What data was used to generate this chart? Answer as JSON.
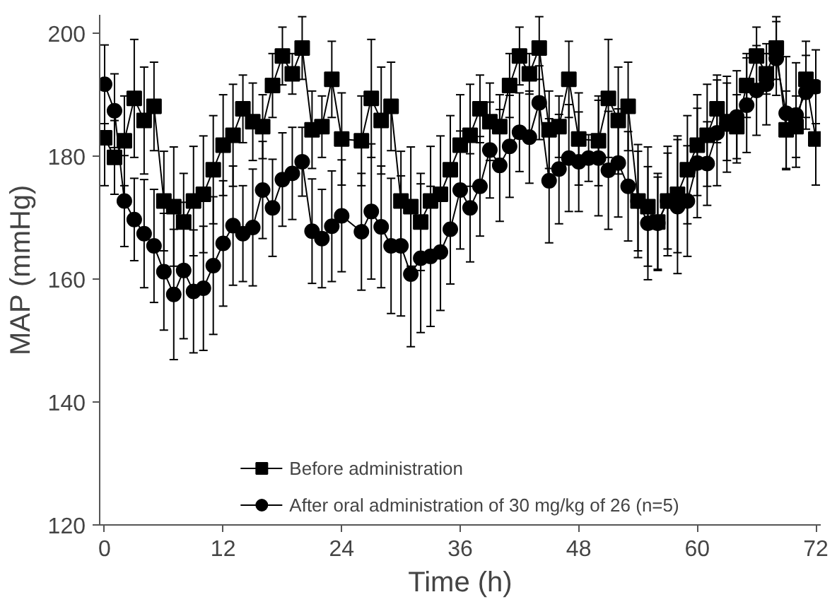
{
  "chart_data": {
    "type": "line",
    "xlabel": "Time (h)",
    "ylabel": "MAP (mmHg)",
    "xlim": [
      -0.5,
      72.5
    ],
    "xticks": [
      0,
      12,
      24,
      36,
      48,
      60,
      72
    ],
    "ylim": [
      120,
      203
    ],
    "yticks": [
      120,
      140,
      160,
      180,
      200
    ],
    "grid": false,
    "legend": "bottom",
    "line_style": "solid",
    "series": [
      {
        "name": "Before administration",
        "color": "#000000",
        "marker": "square",
        "x": [
          0,
          1,
          2,
          3,
          4,
          5,
          6,
          7,
          8,
          9,
          10,
          11,
          12,
          13,
          14,
          15,
          16,
          17,
          18,
          19,
          20,
          21,
          22,
          23,
          24,
          26,
          27,
          28,
          29,
          30,
          31,
          32,
          33,
          34,
          35,
          36,
          37,
          38,
          39,
          40,
          41,
          42,
          43,
          44,
          45,
          46,
          47,
          48,
          50,
          51,
          52,
          53,
          54,
          55,
          56,
          57,
          58,
          59,
          60,
          61,
          62,
          63,
          64,
          65,
          66,
          67,
          68,
          69,
          70,
          71,
          72
        ],
        "values": [
          183.0,
          179.8,
          182.5,
          189.4,
          185.8,
          188.1,
          172.7,
          171.8,
          169.3,
          172.7,
          173.8,
          177.8,
          181.8,
          183.4,
          187.7,
          185.6,
          184.8,
          191.5,
          196.3,
          193.4,
          197.6,
          184.3,
          184.8,
          192.5,
          182.8,
          182.5,
          189.4,
          185.8,
          188.1,
          172.7,
          171.8,
          169.3,
          172.7,
          173.8,
          177.8,
          181.8,
          183.4,
          187.7,
          185.6,
          184.8,
          191.5,
          196.3,
          193.4,
          197.6,
          184.3,
          184.8,
          192.5,
          182.8,
          182.5,
          189.4,
          185.8,
          188.1,
          172.7,
          171.8,
          169.3,
          172.7,
          173.8,
          177.8,
          181.8,
          183.4,
          187.7,
          185.6,
          184.8,
          191.5,
          196.3,
          193.4,
          197.6,
          184.3,
          184.8,
          192.5,
          182.8
        ],
        "errors": [
          7.8,
          6,
          7.3,
          9.6,
          8.7,
          7.2,
          8.1,
          9.7,
          7.9,
          8.9,
          9.5,
          8.8,
          8.2,
          8.3,
          5.5,
          6.3,
          5.2,
          5.2,
          4.7,
          3.3,
          5.1,
          6.3,
          5,
          6.2,
          7.5,
          7.3,
          9.6,
          8.7,
          7.2,
          8.1,
          9.7,
          7.9,
          8.9,
          9.5,
          8.8,
          8.2,
          8.3,
          5.5,
          6.3,
          5.2,
          5.2,
          4.7,
          3.3,
          5.1,
          6.3,
          5,
          6.2,
          7.5,
          7.3,
          9.6,
          8.7,
          7.2,
          8.1,
          9.7,
          7.9,
          8.9,
          9.5,
          8.8,
          8.2,
          8.3,
          5.5,
          6.3,
          5.2,
          5.2,
          4.7,
          3.3,
          5.1,
          6.3,
          5,
          6.2,
          7.5
        ]
      },
      {
        "name": "After oral administration of 30 mg/kg of 26 (n=5)",
        "color": "#000000",
        "marker": "circle",
        "x": [
          0,
          1,
          2,
          3,
          4,
          5,
          6,
          7,
          8,
          9,
          10,
          11,
          12,
          13,
          14,
          15,
          16,
          17,
          18,
          19,
          20,
          21,
          22,
          23,
          24,
          26,
          27,
          28,
          29,
          30,
          31,
          32,
          33,
          34,
          35,
          36,
          37,
          38,
          39,
          40,
          41,
          42,
          43,
          44,
          45,
          46,
          47,
          48,
          49,
          50,
          51,
          52,
          53,
          54,
          55,
          56,
          57,
          58,
          59,
          60,
          61,
          62,
          63,
          64,
          65,
          66,
          67,
          68,
          69,
          70,
          71,
          72
        ],
        "values": [
          191.7,
          187.4,
          172.7,
          169.7,
          167.4,
          165.4,
          161.2,
          157.5,
          161.4,
          158,
          158.5,
          162.2,
          165.8,
          168.7,
          167.4,
          168.4,
          174.5,
          171.6,
          176.2,
          177.2,
          179.1,
          167.8,
          166.6,
          168.6,
          170.3,
          167.7,
          171.0,
          168.5,
          165.4,
          165.4,
          160.8,
          163.4,
          163.7,
          164.4,
          168.1,
          174.5,
          171.6,
          175.1,
          181.0,
          178.5,
          181.6,
          183.9,
          183.1,
          188.7,
          176.0,
          177.9,
          179.7,
          179.1,
          179.7,
          179.7,
          177.7,
          178.9,
          175.1,
          172.7,
          169.1,
          169.1,
          172.7,
          171.8,
          172.7,
          178.9,
          178.8,
          183.8,
          185.2,
          186.4,
          188.3,
          190.7,
          191.7,
          195.9,
          187.0,
          186.7,
          190.4,
          191.3
        ],
        "errors": [
          6.4,
          6,
          7.4,
          6.7,
          8.8,
          9.2,
          9.5,
          10.6,
          11.1,
          10,
          10.1,
          11.2,
          10.2,
          9.7,
          7.8,
          9.5,
          7.9,
          7.9,
          7.6,
          7.5,
          5.6,
          8.5,
          8,
          9,
          9.1,
          9.5,
          11,
          9.9,
          11,
          11.4,
          11.8,
          12.1,
          11.4,
          9.5,
          8.9,
          9.6,
          8.8,
          8.1,
          7.8,
          9.1,
          8.3,
          6.4,
          7.5,
          6,
          10.1,
          8.9,
          8.7,
          8.1,
          3.8,
          9.4,
          9.6,
          8.8,
          8.9,
          9.2,
          9.2,
          7.5,
          7.8,
          10.9,
          9,
          8.9,
          6.8,
          8.6,
          7.8,
          7.5,
          7.7,
          7.3,
          6.6,
          6,
          9.2,
          8.5,
          6,
          6
        ]
      }
    ]
  }
}
